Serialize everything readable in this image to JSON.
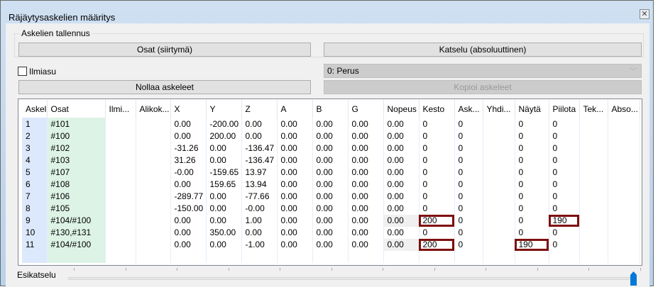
{
  "window": {
    "title": "Räjäytysaskelien määritys",
    "close_icon": "close-icon"
  },
  "group": {
    "label": "Askelien tallennus",
    "btn_parts": "Osat (siirtymä)",
    "btn_view": "Katselu (absoluuttinen)"
  },
  "appearance": {
    "label": "Ilmiasu",
    "checked": false
  },
  "combo": {
    "value": "0: Perus"
  },
  "buttons": {
    "reset": "Nollaa askeleet",
    "copy": "Kopioi askeleet"
  },
  "table": {
    "columns": [
      "Askel",
      "Osat",
      "Ilmi...",
      "Alikok...",
      "X",
      "Y",
      "Z",
      "A",
      "B",
      "G",
      "Nopeus",
      "Kesto",
      "Ask...",
      "Yhdi...",
      "Näytä",
      "Piilota",
      "Tek...",
      "Abso..."
    ],
    "rows": [
      [
        "1",
        "#101",
        "",
        "",
        "0.00",
        "-200.00",
        "0.00",
        "0.00",
        "0.00",
        "0.00",
        "0.00",
        "0",
        "0",
        "",
        "0",
        "0",
        "",
        ""
      ],
      [
        "2",
        "#100",
        "",
        "",
        "0.00",
        "200.00",
        "0.00",
        "0.00",
        "0.00",
        "0.00",
        "0.00",
        "0",
        "0",
        "",
        "0",
        "0",
        "",
        ""
      ],
      [
        "3",
        "#102",
        "",
        "",
        "-31.26",
        "0.00",
        "-136.47",
        "0.00",
        "0.00",
        "0.00",
        "0.00",
        "0",
        "0",
        "",
        "0",
        "0",
        "",
        ""
      ],
      [
        "4",
        "#103",
        "",
        "",
        "31.26",
        "0.00",
        "-136.47",
        "0.00",
        "0.00",
        "0.00",
        "0.00",
        "0",
        "0",
        "",
        "0",
        "0",
        "",
        ""
      ],
      [
        "5",
        "#107",
        "",
        "",
        "-0.00",
        "-159.65",
        "13.97",
        "0.00",
        "0.00",
        "0.00",
        "0.00",
        "0",
        "0",
        "",
        "0",
        "0",
        "",
        ""
      ],
      [
        "6",
        "#108",
        "",
        "",
        "0.00",
        "159.65",
        "13.94",
        "0.00",
        "0.00",
        "0.00",
        "0.00",
        "0",
        "0",
        "",
        "0",
        "0",
        "",
        ""
      ],
      [
        "7",
        "#106",
        "",
        "",
        "-289.77",
        "0.00",
        "-77.66",
        "0.00",
        "0.00",
        "0.00",
        "0.00",
        "0",
        "0",
        "",
        "0",
        "0",
        "",
        ""
      ],
      [
        "8",
        "#105",
        "",
        "",
        "-150.00",
        "0.00",
        "-0.00",
        "0.00",
        "0.00",
        "0.00",
        "0.00",
        "0",
        "0",
        "",
        "0",
        "0",
        "",
        ""
      ],
      [
        "9",
        "#104/#100",
        "",
        "",
        "0.00",
        "0.00",
        "1.00",
        "0.00",
        "0.00",
        "0.00",
        "0.00",
        "200",
        "0",
        "",
        "0",
        "190",
        "",
        ""
      ],
      [
        "10",
        "#130,#131",
        "",
        "",
        "0.00",
        "350.00",
        "0.00",
        "0.00",
        "0.00",
        "0.00",
        "0.00",
        "0",
        "0",
        "",
        "0",
        "0",
        "",
        ""
      ],
      [
        "11",
        "#104/#100",
        "",
        "",
        "0.00",
        "0.00",
        "-1.00",
        "0.00",
        "0.00",
        "0.00",
        "0.00",
        "200",
        "0",
        "",
        "190",
        "0",
        "",
        ""
      ]
    ],
    "highlight_color": "#7f0e0e"
  },
  "preview": {
    "label": "Esikatselu",
    "slider_value": 1.0
  }
}
